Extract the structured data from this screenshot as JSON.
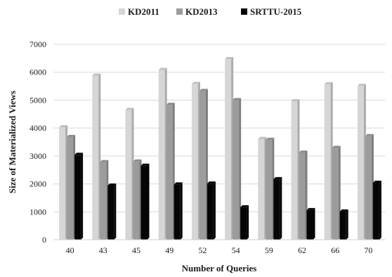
{
  "chart_data": {
    "type": "bar",
    "title": "",
    "xlabel": "Number of Queries",
    "ylabel": "Size of Materialized Views",
    "categories": [
      "40",
      "43",
      "45",
      "49",
      "52",
      "54",
      "59",
      "62",
      "66",
      "70"
    ],
    "series": [
      {
        "name": "KD2011",
        "color": "#d6d6d6",
        "values": [
          4030,
          5880,
          4650,
          6080,
          5580,
          6470,
          3610,
          4960,
          5570,
          5510
        ]
      },
      {
        "name": "KD2013",
        "color": "#9c9c9c",
        "values": [
          3680,
          2780,
          2800,
          4830,
          5330,
          5000,
          3580,
          3120,
          3290,
          3710
        ]
      },
      {
        "name": "SRTTU-2015",
        "color": "#050505",
        "values": [
          3040,
          1940,
          2650,
          1980,
          2010,
          1160,
          2170,
          1060,
          1010,
          2040
        ]
      }
    ],
    "ylim": [
      0,
      7000
    ],
    "yticks": [
      0,
      1000,
      2000,
      3000,
      4000,
      5000,
      6000,
      7000
    ],
    "grid": true,
    "legend": "top-center"
  }
}
